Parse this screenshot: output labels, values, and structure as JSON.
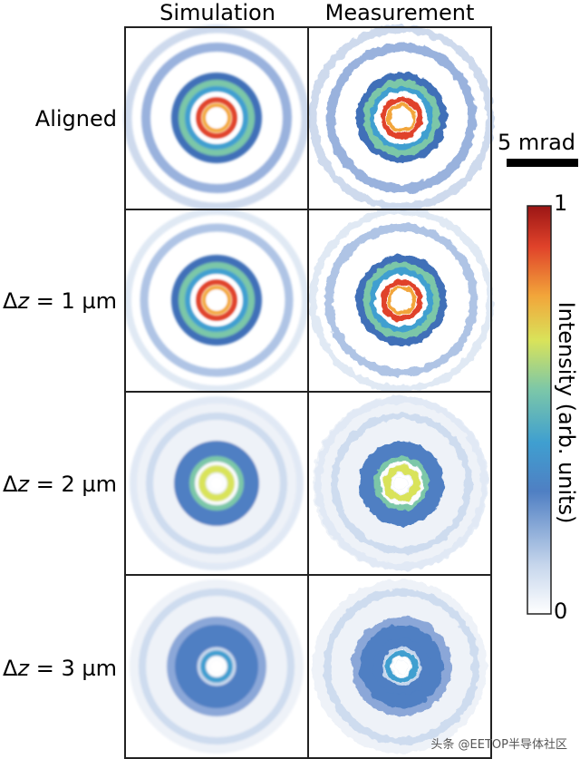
{
  "columns": [
    "Simulation",
    "Measurement"
  ],
  "rows": [
    {
      "label": "Aligned",
      "profile": "aligned"
    },
    {
      "label_prefix": "Δ",
      "label_var": "z",
      "label_suffix": " = 1 µm",
      "profile": "dz1"
    },
    {
      "label_prefix": "Δ",
      "label_var": "z",
      "label_suffix": " = 2 µm",
      "profile": "dz2"
    },
    {
      "label_prefix": "Δ",
      "label_var": "z",
      "label_suffix": " = 3 µm",
      "profile": "dz3"
    }
  ],
  "scalebar": {
    "label": "5 mrad"
  },
  "colorbar": {
    "max_label": "1",
    "min_label": "0",
    "title": "Intensity (arb. units)",
    "colors": [
      "#ffffff",
      "#c6d6ec",
      "#4f7fc3",
      "#3f9fd0",
      "#7cc7a8",
      "#d9e35a",
      "#f2a53a",
      "#e0422a",
      "#9b1515"
    ]
  },
  "watermark": "头条 @EETOP半导体社区"
}
